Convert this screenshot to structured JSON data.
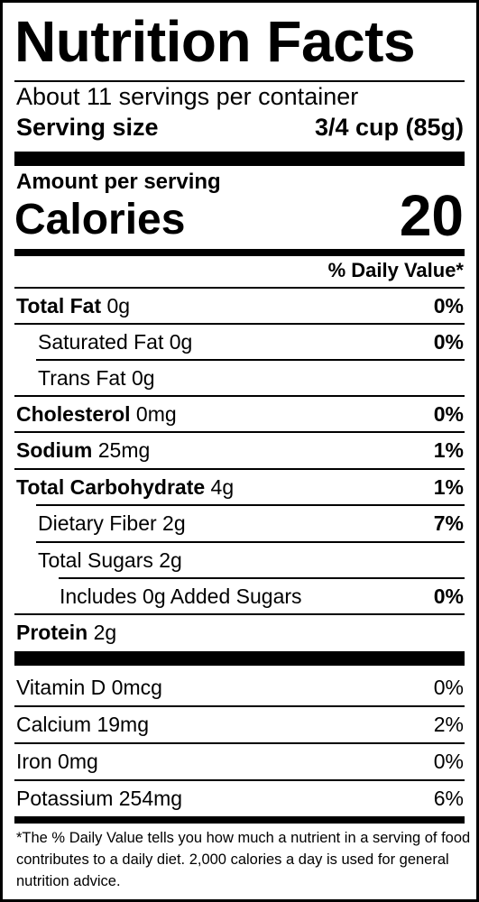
{
  "label": {
    "title": "Nutrition Facts",
    "servings_per_container": "About 11 servings per container",
    "serving_size_label": "Serving size",
    "serving_size_value": "3/4 cup (85g)",
    "amount_per_serving": "Amount per serving",
    "calories_label": "Calories",
    "calories_value": "20",
    "daily_value_header": "% Daily Value*"
  },
  "nutrients": [
    {
      "name": "Total Fat",
      "amount": "0g",
      "dv": "0%"
    },
    {
      "name": "Saturated Fat",
      "amount": "0g",
      "dv": "0%"
    },
    {
      "name": "Trans Fat",
      "amount": "0g",
      "dv": ""
    },
    {
      "name": "Cholesterol",
      "amount": "0mg",
      "dv": "0%"
    },
    {
      "name": "Sodium",
      "amount": "25mg",
      "dv": "1%"
    },
    {
      "name": "Total Carbohydrate",
      "amount": "4g",
      "dv": "1%"
    },
    {
      "name": "Dietary Fiber",
      "amount": "2g",
      "dv": "7%"
    },
    {
      "name": "Total Sugars",
      "amount": "2g",
      "dv": ""
    },
    {
      "name": "Includes 0g Added Sugars",
      "amount": "",
      "dv": "0%"
    },
    {
      "name": "Protein",
      "amount": "2g",
      "dv": ""
    }
  ],
  "vitamins": [
    {
      "name": "Vitamin D",
      "amount": "0mcg",
      "dv": "0%"
    },
    {
      "name": "Calcium",
      "amount": "19mg",
      "dv": "2%"
    },
    {
      "name": "Iron",
      "amount": "0mg",
      "dv": "0%"
    },
    {
      "name": "Potassium",
      "amount": "254mg",
      "dv": "6%"
    }
  ],
  "footnote": "*The % Daily Value tells you how much a nutrient in a serving of food contributes to a daily diet. 2,000 calories a day is used for general nutrition advice."
}
